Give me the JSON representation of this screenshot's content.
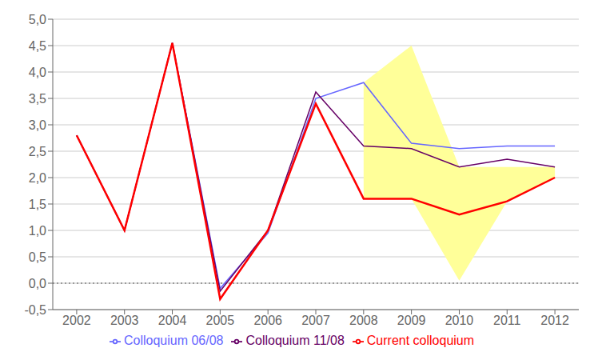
{
  "chart_data": {
    "type": "line",
    "x": [
      2002,
      2003,
      2004,
      2005,
      2006,
      2007,
      2008,
      2009,
      2010,
      2011,
      2012
    ],
    "series": [
      {
        "name": "Colloquium 06/08",
        "color": "#6666ff",
        "values": [
          2.8,
          1.0,
          4.55,
          -0.1,
          0.95,
          3.5,
          3.8,
          2.65,
          2.55,
          2.6,
          2.6
        ]
      },
      {
        "name": "Colloquium 11/08",
        "color": "#660066",
        "values": [
          2.8,
          1.0,
          4.55,
          -0.15,
          1.0,
          3.62,
          2.6,
          2.55,
          2.2,
          2.35,
          2.2
        ]
      },
      {
        "name": "Current colloquium",
        "color": "#ff0000",
        "values": [
          2.8,
          1.0,
          4.55,
          -0.3,
          1.0,
          3.4,
          1.6,
          1.6,
          1.3,
          1.55,
          2.0
        ]
      }
    ],
    "band": {
      "x": [
        2008,
        2009,
        2010,
        2011,
        2012
      ],
      "upper": [
        3.8,
        4.5,
        2.2,
        2.2,
        2.2
      ],
      "lower": [
        1.6,
        1.6,
        0.05,
        1.55,
        2.0
      ],
      "color": "#ffff99"
    },
    "reference_line": 0,
    "xlim": [
      2001.5,
      2012.5
    ],
    "xticks": [
      2002,
      2003,
      2004,
      2005,
      2006,
      2007,
      2008,
      2009,
      2010,
      2011,
      2012
    ],
    "ylim": [
      -0.5,
      5.0
    ],
    "yticks": [
      {
        "value": -0.5,
        "label": "-0,5"
      },
      {
        "value": 0.0,
        "label": "0,0"
      },
      {
        "value": 0.5,
        "label": "0,5"
      },
      {
        "value": 1.0,
        "label": "1,0"
      },
      {
        "value": 1.5,
        "label": "1,5"
      },
      {
        "value": 2.0,
        "label": "2,0"
      },
      {
        "value": 2.5,
        "label": "2,5"
      },
      {
        "value": 3.0,
        "label": "3,0"
      },
      {
        "value": 3.5,
        "label": "3,5"
      },
      {
        "value": 4.0,
        "label": "4,0"
      },
      {
        "value": 4.5,
        "label": "4,5"
      },
      {
        "value": 5.0,
        "label": "5,0"
      }
    ],
    "grid": true,
    "legend": "bottom"
  }
}
